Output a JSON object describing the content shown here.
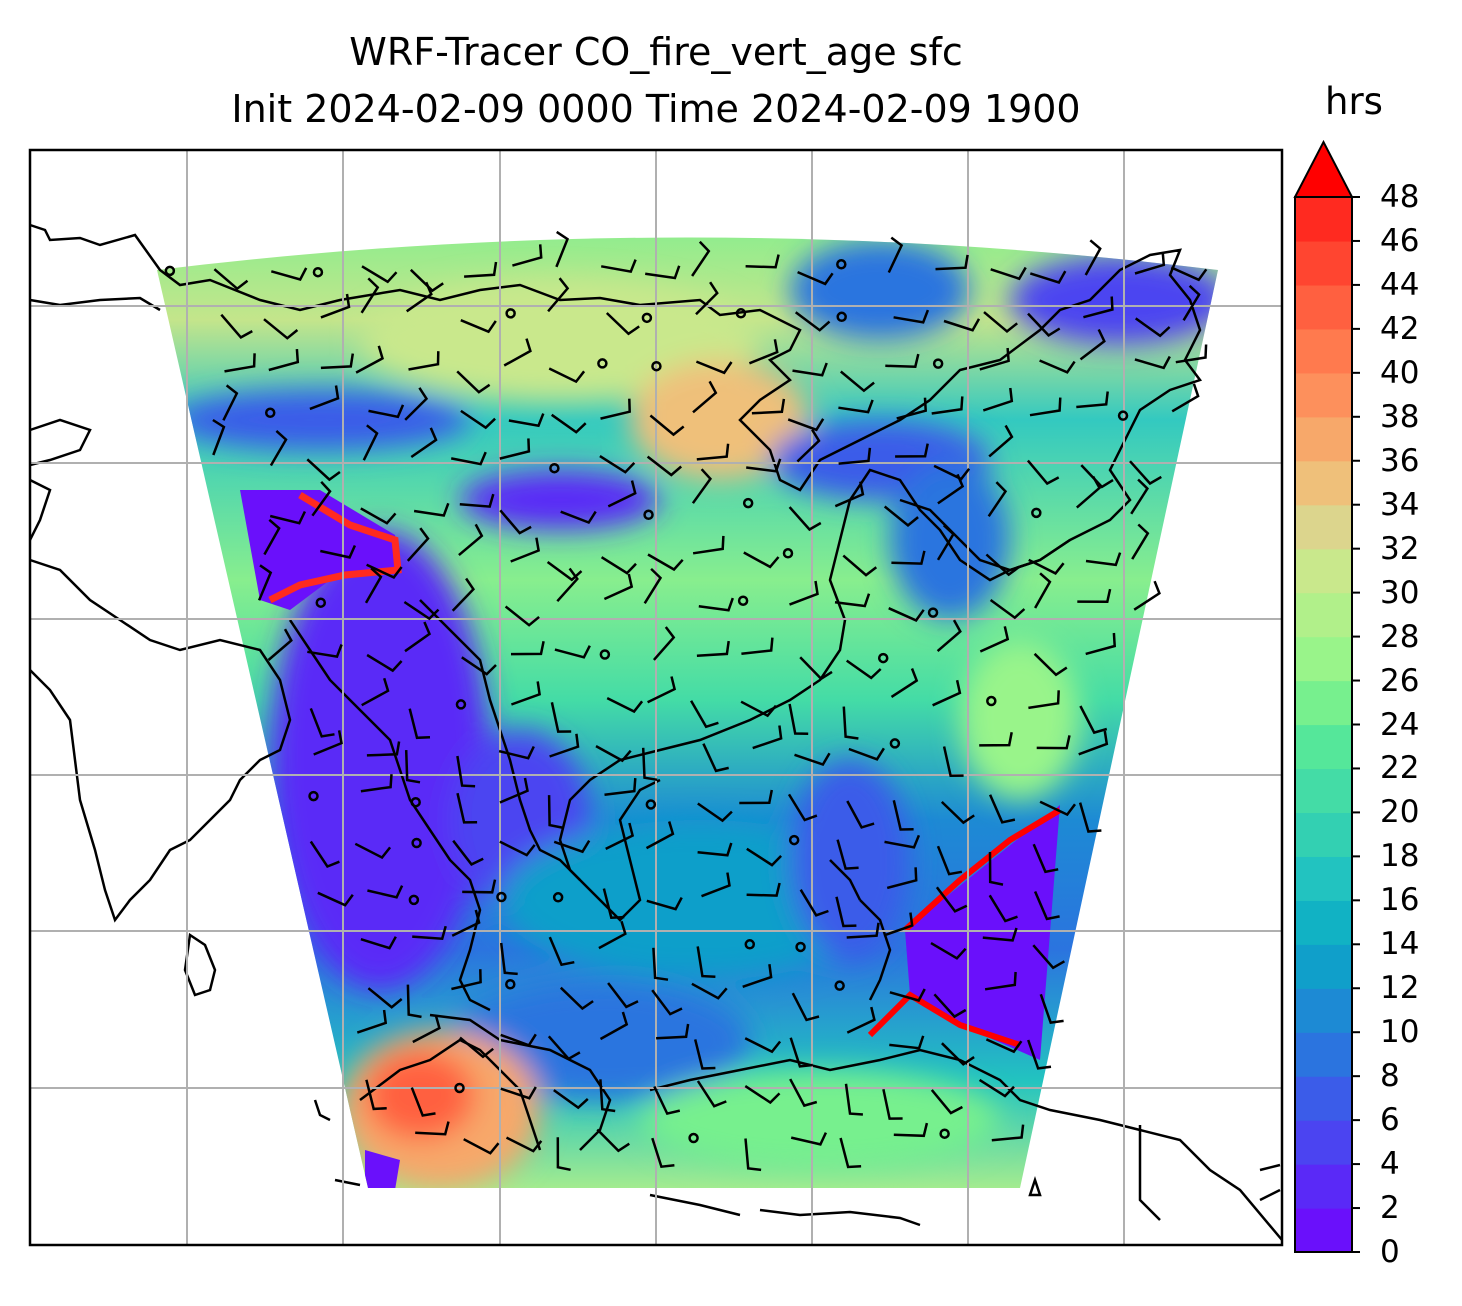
{
  "title": {
    "line1": "WRF-Tracer CO_fire_vert_age sfc",
    "line2": "Init 2024-02-09 0000 Time 2024-02-09 1900"
  },
  "colorbar": {
    "unit": "hrs",
    "extend": "max",
    "ticks": [
      "0",
      "2",
      "4",
      "6",
      "8",
      "10",
      "12",
      "14",
      "16",
      "18",
      "20",
      "22",
      "24",
      "26",
      "28",
      "30",
      "32",
      "34",
      "36",
      "38",
      "40",
      "42",
      "44",
      "46",
      "48"
    ],
    "colors": [
      "#6a10fb",
      "#5a29f7",
      "#4b44f1",
      "#3b5ce9",
      "#2b74df",
      "#1d8ad4",
      "#109fca",
      "#11b2c4",
      "#22c3c0",
      "#33d0b2",
      "#44dca6",
      "#55e79a",
      "#77f08e",
      "#99f48a",
      "#b1f08a",
      "#c9e88c",
      "#dcd58d",
      "#efc07a",
      "#f7a86a",
      "#fd905c",
      "#ff7a4e",
      "#ff6040",
      "#ff4530",
      "#ff2a20"
    ],
    "extend_color": "#ff0000"
  },
  "map": {
    "type": "filled-contour field with wind barbs",
    "field": "CO_fire_vert_age",
    "level": "sfc",
    "grid": "on",
    "grid_color": "#b0b0b0",
    "coastline_color": "#000000",
    "barb_color": "#000000"
  }
}
